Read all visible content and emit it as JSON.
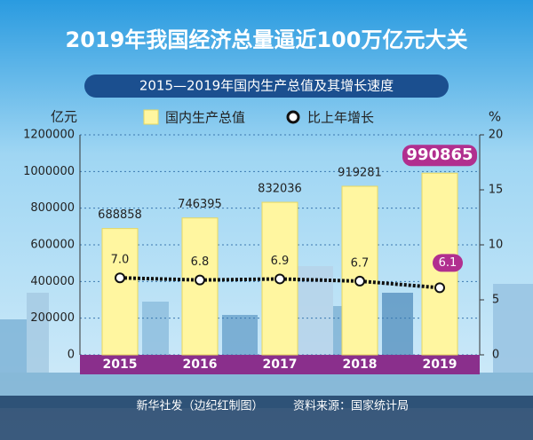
{
  "chart_data": {
    "type": "bar",
    "title": "2019年我国经济总量逼近100万亿元大关",
    "subtitle": "2015—2019年国内生产总值及其增长速度",
    "y_label": "亿元",
    "y2_label": "%",
    "categories": [
      "2015",
      "2016",
      "2017",
      "2018",
      "2019"
    ],
    "series": [
      {
        "name": "国内生产总值",
        "type": "bar",
        "color": "#fff6a0",
        "values": [
          688858,
          746395,
          832036,
          919281,
          990865
        ]
      },
      {
        "name": "比上年增长",
        "type": "line",
        "axis": "y2",
        "color": "#111111",
        "values": [
          7.0,
          6.8,
          6.9,
          6.7,
          6.1
        ],
        "value_labels": [
          "7.0",
          "6.8",
          "6.9",
          "6.7",
          "6.1"
        ]
      }
    ],
    "ylim": [
      0,
      1200000
    ],
    "yticks": [
      0,
      200000,
      400000,
      600000,
      800000,
      1000000,
      1200000
    ],
    "y2lim": [
      0,
      20
    ],
    "y2ticks": [
      0,
      5,
      10,
      15,
      20
    ],
    "grid": true,
    "footer_left": "新华社发（边纪红制图）",
    "footer_right": "资料来源：国家统计局"
  }
}
